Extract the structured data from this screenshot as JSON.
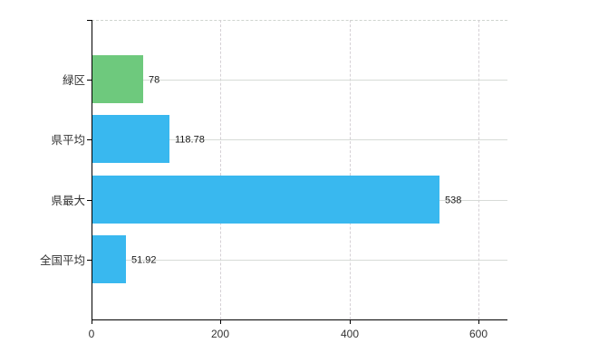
{
  "page": {
    "background": "#ffffff"
  },
  "chart_data": {
    "type": "bar",
    "orientation": "horizontal",
    "title": "",
    "xlabel": "",
    "ylabel": "",
    "categories": [
      "緑区",
      "県平均",
      "県最大",
      "全国平均"
    ],
    "values": [
      78,
      118.78,
      538,
      51.92
    ],
    "value_labels": [
      "78",
      "118.78",
      "538",
      "51.92"
    ],
    "bar_colors": [
      "#6ec97d",
      "#39b8ef",
      "#39b8ef",
      "#39b8ef"
    ],
    "x_ticks": [
      0,
      200,
      400,
      600
    ],
    "x_tick_labels": [
      "0",
      "200",
      "400",
      "600"
    ],
    "xlim": [
      0,
      645
    ],
    "grid": true,
    "legend": false,
    "colors": {
      "axis": "#000000",
      "horizontal_gridline": "#d7dbd7",
      "vertical_gridline": "#d5d0d5",
      "category_text": "#333333",
      "value_text": "#1a1a1a",
      "background": "#ffffff"
    }
  }
}
